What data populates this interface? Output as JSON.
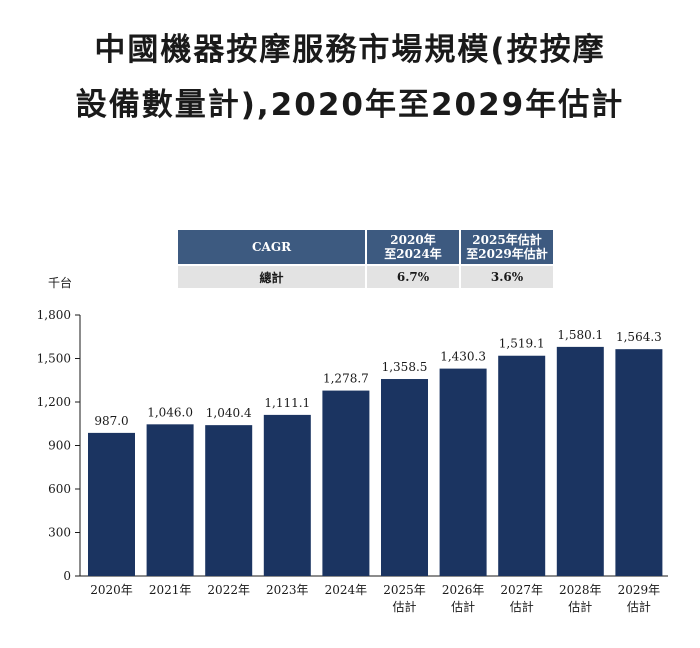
{
  "title_line1": "中國機器按摩服務市場規模(按按摩",
  "title_line2": "設備數量計),2020年至2029年估計",
  "cagr_table": {
    "header_label": "CAGR",
    "col1_header": [
      "2020年",
      "至2024年"
    ],
    "col2_header": [
      "2025年估計",
      "至2029年估計"
    ],
    "row_label": "總計",
    "col1_value": "6.7%",
    "col2_value": "3.6%"
  },
  "chart_data": {
    "type": "bar",
    "ylabel": "千台",
    "ylim": [
      0,
      1800
    ],
    "yticks": [
      0,
      300,
      600,
      900,
      1200,
      1500,
      1800
    ],
    "ytick_labels": [
      "0",
      "300",
      "600",
      "900",
      "1,200",
      "1,500",
      "1,800"
    ],
    "categories": [
      [
        "2020年"
      ],
      [
        "2021年"
      ],
      [
        "2022年"
      ],
      [
        "2023年"
      ],
      [
        "2024年"
      ],
      [
        "2025年",
        "估計"
      ],
      [
        "2026年",
        "估計"
      ],
      [
        "2027年",
        "估計"
      ],
      [
        "2028年",
        "估計"
      ],
      [
        "2029年",
        "估計"
      ]
    ],
    "values": [
      987.0,
      1046.0,
      1040.4,
      1111.1,
      1278.7,
      1358.5,
      1430.3,
      1519.1,
      1580.1,
      1564.3
    ],
    "value_labels": [
      "987.0",
      "1,046.0",
      "1,040.4",
      "1,111.1",
      "1,278.7",
      "1,358.5",
      "1,430.3",
      "1,519.1",
      "1,580.1",
      "1,564.3"
    ],
    "bar_color": "#1b3461",
    "grid": false
  }
}
